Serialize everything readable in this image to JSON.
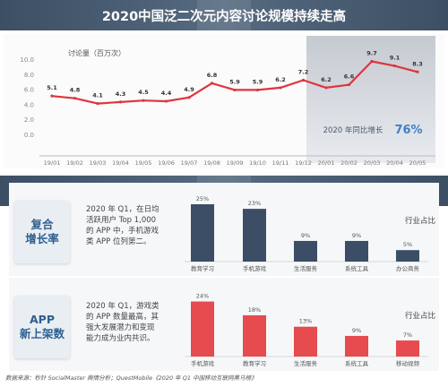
{
  "top": {
    "title": "2020中国泛二次元内容讨论规模持续走高",
    "callout_label": "2020 年同比增长",
    "callout_value": "76%"
  },
  "middle": {
    "title": "2020移动游戏引领泛二次元市场规模加速增长",
    "cards": [
      {
        "label": "复合\n增长率",
        "desc": "2020 年 Q1，在日均\n活跃用户 Top 1,000\n的 APP 中，手机游戏\n类 APP 位列第二。"
      },
      {
        "label": "APP\n新上架数",
        "desc": "2020 年 Q1，游戏类\n的 APP 数量最高，其\n强大发展潜力和变现\n能力成为业内共识。"
      }
    ],
    "legend": "行业占比"
  },
  "footer": {
    "text": "数据来源：秒针 SocialMaster 舆情分析；QuestMobile《2020 年 Q1 中国移动互联网黑马榜》"
  },
  "colors": {
    "line": "#e0343f",
    "highlight_box": "#b9bfc8",
    "bar_dark": "#3b4e66",
    "bar_red": "#e64b4f",
    "card_text": "#2f5f8f"
  },
  "chart_data": [
    {
      "type": "line",
      "title": "",
      "ylabel": "讨论量（百万次）",
      "ylim": [
        0,
        10
      ],
      "yticks": [
        "0.0",
        "2.0",
        "4.0",
        "6.0",
        "8.0",
        "10.0"
      ],
      "categories": [
        "19/01",
        "19/02",
        "19/03",
        "19/04",
        "19/05",
        "19/06",
        "19/07",
        "19/08",
        "19/09",
        "19/10",
        "19/11",
        "19/12",
        "20/01",
        "20/02",
        "20/03",
        "20/04",
        "20/05"
      ],
      "values": [
        5.1,
        4.8,
        4.1,
        4.3,
        4.5,
        4.4,
        4.9,
        6.8,
        5.9,
        5.9,
        6.2,
        7.2,
        6.2,
        6.6,
        9.7,
        9.1,
        8.3
      ],
      "value_labels": [
        "5.1",
        "4.8",
        "4.1",
        "4.3",
        "4.5",
        "4.4",
        "4.9",
        "6.8",
        "5.9",
        "5.9",
        "6.2",
        "7.2",
        "6.2",
        "6.6",
        "9.7",
        "9.1",
        "8.3"
      ],
      "grid": false,
      "highlight": [
        "20/01",
        "20/05"
      ]
    },
    {
      "type": "bar",
      "categories": [
        "教育学习",
        "手机游戏",
        "生活服务",
        "系统工具",
        "办公商务"
      ],
      "values": [
        25,
        23,
        9,
        9,
        5
      ],
      "value_labels": [
        "25%",
        "23%",
        "9%",
        "9%",
        "5%"
      ]
    },
    {
      "type": "bar",
      "categories": [
        "手机游戏",
        "教育学习",
        "生活服务",
        "系统工具",
        "移动视频"
      ],
      "values": [
        24,
        18,
        13,
        9,
        7
      ],
      "value_labels": [
        "24%",
        "18%",
        "13%",
        "9%",
        "7%"
      ]
    }
  ]
}
